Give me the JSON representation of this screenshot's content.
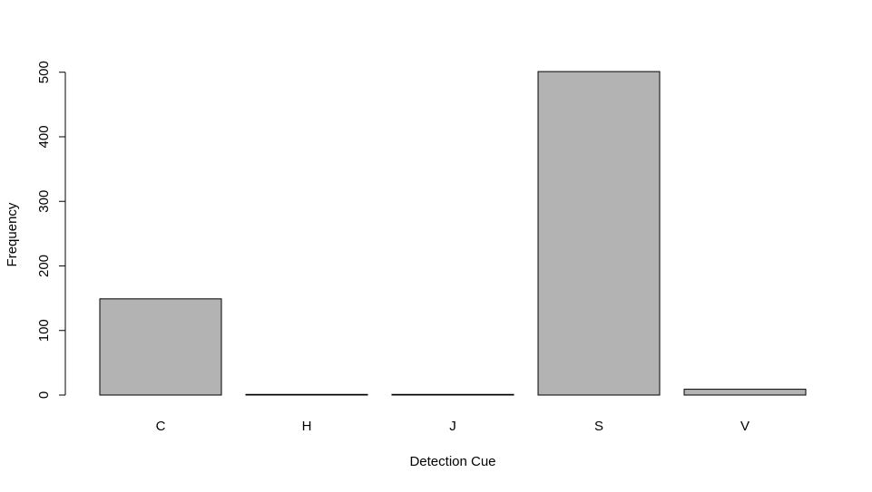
{
  "chart_data": {
    "type": "bar",
    "title": "",
    "xlabel": "Detection Cue",
    "ylabel": "Frequency",
    "categories": [
      "C",
      "H",
      "J",
      "S",
      "V"
    ],
    "values": [
      149,
      1,
      1,
      501,
      9
    ],
    "ylim": [
      0,
      501
    ],
    "yticks": [
      0,
      100,
      200,
      300,
      400,
      500
    ],
    "grid": false,
    "legend": "none",
    "bar_fill": "#b3b3b3",
    "bar_stroke": "#000000"
  }
}
